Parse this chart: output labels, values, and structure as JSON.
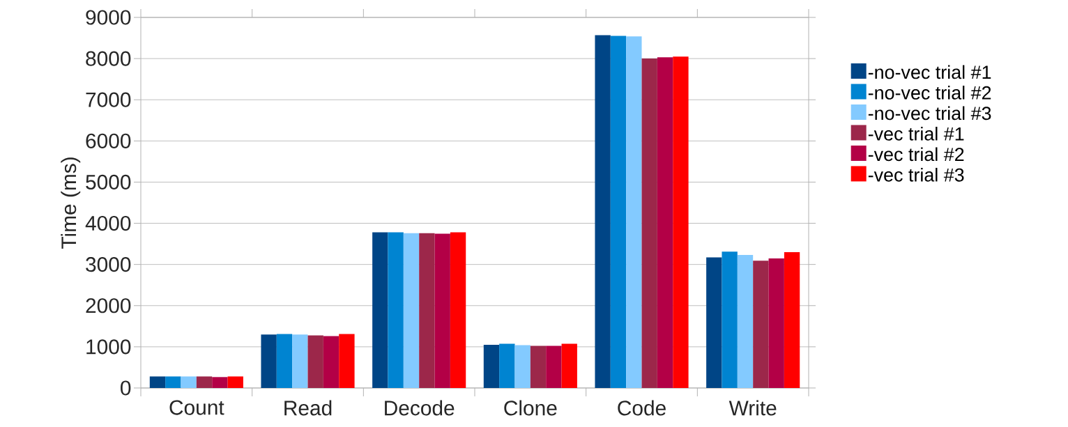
{
  "chart_data": {
    "type": "bar",
    "ylabel": "Time (ms)",
    "categories": [
      "Count",
      "Read",
      "Decode",
      "Clone",
      "Code",
      "Write"
    ],
    "series": [
      {
        "name": "-no-vec trial #1",
        "color": "#004586",
        "values": [
          280,
          1300,
          3780,
          1050,
          8570,
          3170
        ]
      },
      {
        "name": "-no-vec trial #2",
        "color": "#0084d1",
        "values": [
          280,
          1310,
          3780,
          1075,
          8550,
          3310
        ]
      },
      {
        "name": "-no-vec trial #3",
        "color": "#83caff",
        "values": [
          280,
          1300,
          3760,
          1040,
          8540,
          3230
        ]
      },
      {
        "name": "-vec trial #1",
        "color": "#9c274a",
        "values": [
          280,
          1275,
          3760,
          1025,
          8000,
          3090
        ]
      },
      {
        "name": "-vec trial #2",
        "color": "#b30046",
        "values": [
          265,
          1260,
          3745,
          1025,
          8030,
          3145
        ]
      },
      {
        "name": "-vec trial #3",
        "color": "#ff0000",
        "values": [
          280,
          1310,
          3780,
          1075,
          8050,
          3300
        ]
      }
    ],
    "ylim": [
      0,
      9000
    ],
    "yticks": [
      0,
      1000,
      2000,
      3000,
      4000,
      5000,
      6000,
      7000,
      8000,
      9000
    ],
    "grid": "y",
    "legend": "right"
  }
}
